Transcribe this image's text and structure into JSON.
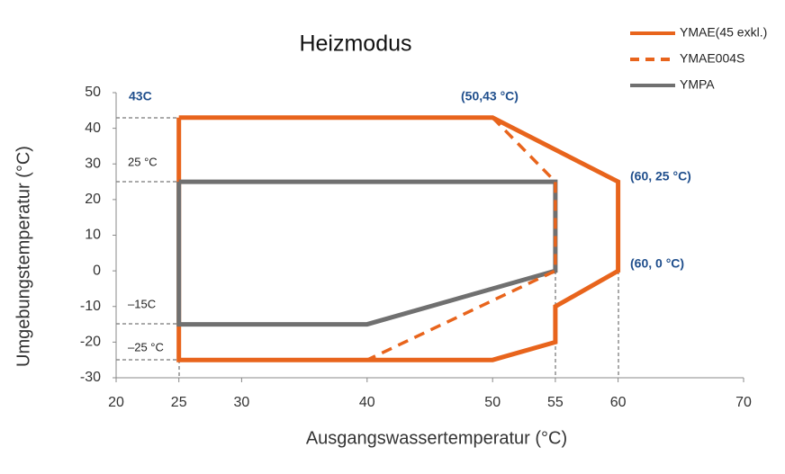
{
  "chart_data": {
    "type": "line",
    "title": "Heizmodus",
    "x_label": "Ausgangswassertemperatur (°C)",
    "y_label": "Umgebungstemperatur (°C)",
    "xlim": [
      20,
      70
    ],
    "xticks": [
      20,
      25,
      30,
      40,
      50,
      55,
      60,
      70
    ],
    "ylim": [
      -30,
      50
    ],
    "yticks": [
      -30,
      -20,
      -10,
      0,
      10,
      20,
      30,
      40,
      50
    ],
    "legend": "top-right",
    "series": [
      {
        "name": "YMAE(45 exkl.)",
        "color": "#e8641c",
        "dash": false,
        "x": [
          25,
          50,
          60,
          60,
          55,
          55,
          50,
          25,
          25
        ],
        "values": [
          43,
          43,
          25,
          0,
          -10,
          -20,
          -25,
          -25,
          43
        ]
      },
      {
        "name": "YMAE004S",
        "color": "#e8641c",
        "dash": true,
        "x": [
          50,
          55,
          55,
          40
        ],
        "values": [
          43,
          25,
          0,
          -25
        ]
      },
      {
        "name": "YMPA",
        "color": "#707070",
        "dash": false,
        "x": [
          25,
          55,
          55,
          40,
          25,
          25
        ],
        "values": [
          25,
          25,
          0,
          -15,
          -15,
          25
        ]
      }
    ],
    "annotations": [
      "43C",
      "(50,43 °C)",
      "(60, 25 °C)",
      "(60, 0 °C)",
      "25 °C",
      "–15C",
      "–25 °C"
    ]
  }
}
